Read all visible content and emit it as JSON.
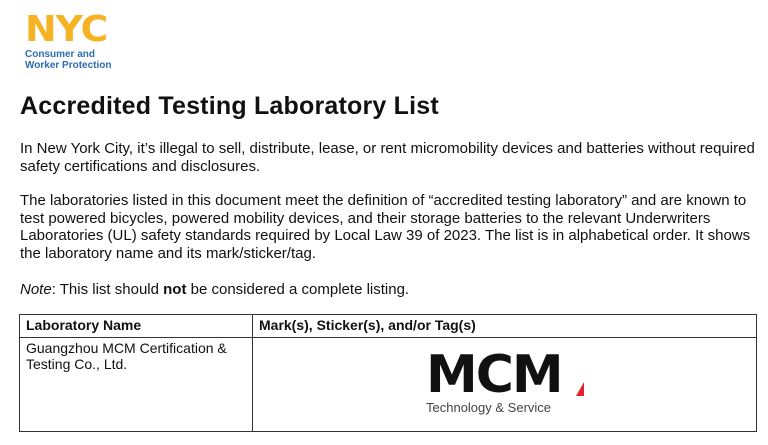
{
  "logo": {
    "mark": "NYC",
    "org_line1": "Consumer and",
    "org_line2": "Worker Protection",
    "colors": {
      "nyc": "#f5b323",
      "org": "#2c6db3"
    }
  },
  "title": "Accredited Testing Laboratory List",
  "para1": "In New York City, it’s illegal to sell, distribute, lease, or rent micromobility devices and batteries without required safety certifications and disclosures.",
  "para2": "The laboratories listed in this document meet the definition of “accredited testing laboratory” and are known to test powered bicycles, powered mobility devices, and their storage batteries to the relevant Underwriters Laboratories (UL) safety standards required by Local Law 39 of 2023. The list is in alphabetical order. It shows the laboratory name and its mark/sticker/tag.",
  "note": {
    "label": "Note",
    "pre": ": This list should ",
    "bold": "not",
    "post": " be considered a complete listing."
  },
  "table": {
    "headers": [
      "Laboratory Name",
      "Mark(s), Sticker(s), and/or Tag(s)"
    ],
    "rows": [
      {
        "name": "Guangzhou MCM Certification & Testing Co., Ltd.",
        "mark": {
          "logo_text": "MCM",
          "tagline": "Technology & Service"
        }
      }
    ]
  }
}
